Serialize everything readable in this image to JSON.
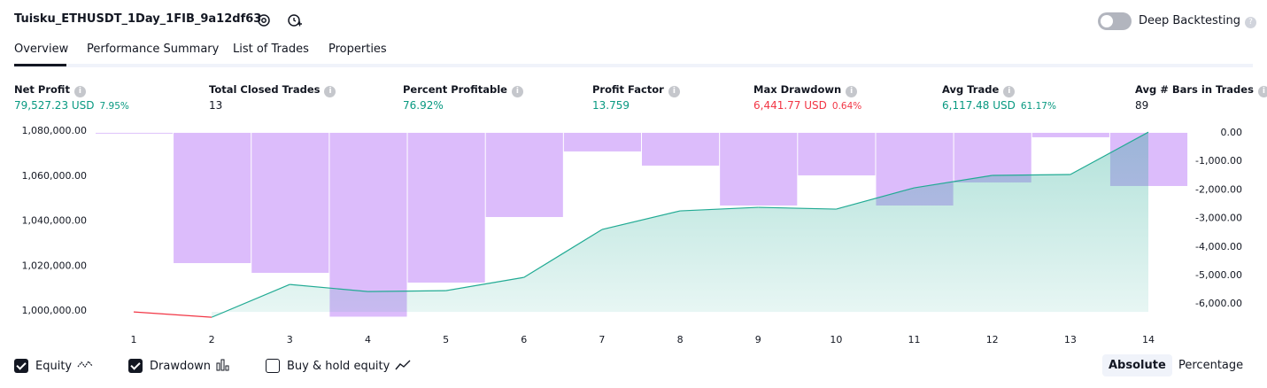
{
  "header": {
    "title": "Tuisku_ETHUSDT_1Day_1FIB_9a12df63",
    "toggle_label": "Deep Backtesting",
    "toggle_on": false
  },
  "tabs": {
    "items": [
      "Overview",
      "Performance Summary",
      "List of Trades",
      "Properties"
    ],
    "active": 0
  },
  "metrics": [
    {
      "label": "Net Profit",
      "value": "79,527.23 USD",
      "change": "7.95%",
      "tone": "positive"
    },
    {
      "label": "Total Closed Trades",
      "value": "13",
      "tone": "neutral"
    },
    {
      "label": "Percent Profitable",
      "value": "76.92%",
      "tone": "positive"
    },
    {
      "label": "Profit Factor",
      "value": "13.759",
      "tone": "positive"
    },
    {
      "label": "Max Drawdown",
      "value": "6,441.77 USD",
      "change": "0.64%",
      "tone": "negative"
    },
    {
      "label": "Avg Trade",
      "value": "6,117.48 USD",
      "change": "61.17%",
      "tone": "positive"
    },
    {
      "label": "Avg # Bars in Trades",
      "value": "89",
      "tone": "neutral"
    }
  ],
  "chart_data": {
    "type": "combo",
    "categories": [
      1,
      2,
      3,
      4,
      5,
      6,
      7,
      8,
      9,
      10,
      11,
      12,
      13,
      14
    ],
    "series": [
      {
        "name": "Equity",
        "color": "#22ab94",
        "negative_color": "#f23645",
        "axis": "y",
        "visible": true,
        "values": [
          999600,
          997240,
          1011820,
          1008670,
          1009060,
          1014970,
          1036250,
          1044530,
          1046100,
          1045320,
          1054780,
          1060300,
          1060690,
          1079527.23
        ]
      },
      {
        "name": "Drawdown",
        "color": "#dcbcfb",
        "axis": "y2",
        "visible": true,
        "values": [
          0,
          -4565,
          -4907,
          -6441.77,
          -5248,
          -2950,
          -652,
          -1149,
          -2547,
          -1491,
          -2547,
          -1739,
          -155,
          -1863
        ]
      }
    ],
    "ylim": [
      996500,
      1080000
    ],
    "yticks": [
      {
        "value": 1000000,
        "label": "1,000,000.00"
      },
      {
        "value": 1020000,
        "label": "1,020,000.00"
      },
      {
        "value": 1040000,
        "label": "1,040,000.00"
      },
      {
        "value": 1060000,
        "label": "1,060,000.00"
      },
      {
        "value": 1080000,
        "label": "1,080,000.00"
      }
    ],
    "y2lim": [
      -6520,
      60
    ],
    "y2ticks": [
      {
        "value": 0,
        "label": "0.00"
      },
      {
        "value": -1000,
        "label": "-1,000.00"
      },
      {
        "value": -2000,
        "label": "-2,000.00"
      },
      {
        "value": -3000,
        "label": "-3,000.00"
      },
      {
        "value": -4000,
        "label": "-4,000.00"
      },
      {
        "value": -5000,
        "label": "-5,000.00"
      },
      {
        "value": -6000,
        "label": "-6,000.00"
      }
    ]
  },
  "controls": {
    "buy_hold": {
      "label": "Buy & hold equity",
      "checked": false
    },
    "scale_modes": [
      "Absolute",
      "Percentage"
    ],
    "active_scale": 0
  }
}
